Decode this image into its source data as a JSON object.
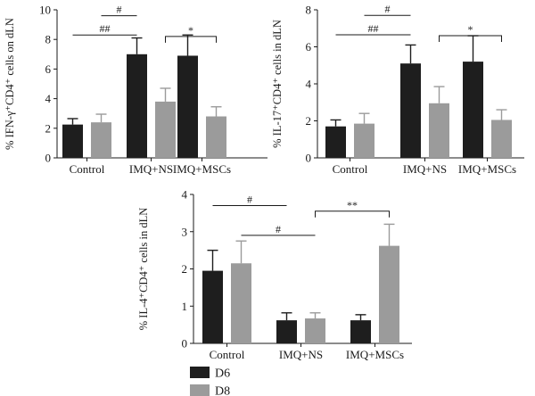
{
  "colors": {
    "d6": "#1e1e1e",
    "d8": "#9b9b9b",
    "axis": "#1a1a1a"
  },
  "legend": [
    {
      "key": "d6",
      "label": "D6"
    },
    {
      "key": "d8",
      "label": "D8"
    }
  ],
  "chart_data": [
    {
      "type": "bar",
      "categories": [
        "Control",
        "IMQ+NS",
        "IMQ+MSCs"
      ],
      "ylabel": "% IFN-γ⁺CD4⁺ cells on dLN",
      "ylim": [
        0,
        10
      ],
      "yticks": [
        0,
        2,
        4,
        6,
        8,
        10
      ],
      "series": [
        {
          "name": "D6",
          "values": [
            2.25,
            7.0,
            6.9
          ],
          "errors": [
            0.4,
            1.1,
            1.4
          ]
        },
        {
          "name": "D8",
          "values": [
            2.4,
            3.8,
            2.8
          ],
          "errors": [
            0.55,
            0.9,
            0.65
          ]
        }
      ],
      "annotations": [
        {
          "label": "##",
          "from": "Control",
          "to": "IMQ+NS",
          "series_from": "D6",
          "series_to": "D6",
          "y": 8.3
        },
        {
          "label": "#",
          "from": "Control",
          "to": "IMQ+NS",
          "series_from": "D8",
          "series_to": "D6",
          "y": 9.6
        },
        {
          "label": "*",
          "from": "IMQ+NS",
          "to": "IMQ+MSCs",
          "series_from": "D8",
          "series_to": "D8",
          "y": 8.2,
          "bracket": true
        }
      ]
    },
    {
      "type": "bar",
      "categories": [
        "Control",
        "IMQ+NS",
        "IMQ+MSCs"
      ],
      "ylabel": "% IL-17⁺CD4⁺ cells in dLN",
      "ylim": [
        0,
        8
      ],
      "yticks": [
        0,
        2,
        4,
        6,
        8
      ],
      "series": [
        {
          "name": "D6",
          "values": [
            1.7,
            5.1,
            5.2
          ],
          "errors": [
            0.35,
            1.0,
            1.4
          ]
        },
        {
          "name": "D8",
          "values": [
            1.85,
            2.95,
            2.05
          ],
          "errors": [
            0.55,
            0.9,
            0.55
          ]
        }
      ],
      "annotations": [
        {
          "label": "##",
          "from": "Control",
          "to": "IMQ+NS",
          "series_from": "D6",
          "series_to": "D6",
          "y": 6.65
        },
        {
          "label": "#",
          "from": "Control",
          "to": "IMQ+NS",
          "series_from": "D8",
          "series_to": "D6",
          "y": 7.7
        },
        {
          "label": "*",
          "from": "IMQ+NS",
          "to": "IMQ+MSCs",
          "series_from": "D8",
          "series_to": "D8",
          "y": 6.6,
          "bracket": true
        }
      ]
    },
    {
      "type": "bar",
      "categories": [
        "Control",
        "IMQ+NS",
        "IMQ+MSCs"
      ],
      "ylabel": "% IL-4⁺CD4⁺ cells in dLN",
      "ylim": [
        0,
        4
      ],
      "yticks": [
        0,
        1,
        2,
        3,
        4
      ],
      "series": [
        {
          "name": "D6",
          "values": [
            1.95,
            0.62,
            0.62
          ],
          "errors": [
            0.55,
            0.2,
            0.15
          ]
        },
        {
          "name": "D8",
          "values": [
            2.15,
            0.67,
            2.62
          ],
          "errors": [
            0.6,
            0.15,
            0.58
          ]
        }
      ],
      "annotations": [
        {
          "label": "#",
          "from": "Control",
          "to": "IMQ+NS",
          "series_from": "D6",
          "series_to": "D6",
          "y": 3.7
        },
        {
          "label": "#",
          "from": "Control",
          "to": "IMQ+NS",
          "series_from": "D8",
          "series_to": "D8",
          "y": 2.9
        },
        {
          "label": "**",
          "from": "IMQ+NS",
          "to": "IMQ+MSCs",
          "series_from": "D8",
          "series_to": "D8",
          "y": 3.55,
          "bracket": true
        }
      ]
    }
  ]
}
